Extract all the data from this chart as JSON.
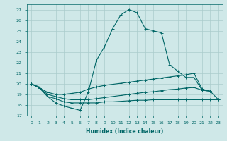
{
  "title": "",
  "xlabel": "Humidex (Indice chaleur)",
  "background_color": "#cfe8e8",
  "grid_color": "#aacccc",
  "line_color": "#006666",
  "xlim": [
    -0.5,
    23.5
  ],
  "ylim": [
    17,
    27.5
  ],
  "yticks": [
    17,
    18,
    19,
    20,
    21,
    22,
    23,
    24,
    25,
    26,
    27
  ],
  "xticks": [
    0,
    1,
    2,
    3,
    4,
    5,
    6,
    7,
    8,
    9,
    10,
    11,
    12,
    13,
    14,
    15,
    16,
    17,
    18,
    19,
    20,
    21,
    22,
    23
  ],
  "series": [
    {
      "x": [
        0,
        1,
        2,
        3,
        4,
        5,
        6,
        7,
        8,
        9,
        10,
        11,
        12,
        13,
        14,
        15,
        16,
        17,
        18,
        19,
        20,
        21,
        22
      ],
      "y": [
        20.0,
        19.7,
        18.8,
        18.2,
        17.9,
        17.7,
        17.5,
        19.2,
        22.2,
        23.5,
        25.2,
        26.5,
        27.0,
        26.7,
        25.2,
        25.0,
        24.8,
        21.8,
        21.2,
        20.6,
        20.6,
        19.4,
        19.3
      ]
    },
    {
      "x": [
        0,
        1,
        2,
        3,
        4,
        5,
        6,
        7,
        8,
        9,
        10,
        11,
        12,
        13,
        14,
        15,
        16,
        17,
        18,
        19,
        20,
        21,
        22,
        23
      ],
      "y": [
        20.0,
        19.6,
        19.2,
        19.0,
        19.0,
        19.1,
        19.2,
        19.5,
        19.7,
        19.85,
        19.95,
        20.05,
        20.15,
        20.25,
        20.35,
        20.45,
        20.55,
        20.65,
        20.75,
        20.85,
        21.0,
        19.5,
        19.3,
        null
      ]
    },
    {
      "x": [
        0,
        1,
        2,
        3,
        4,
        5,
        6,
        7,
        8,
        9,
        10,
        11,
        12,
        13,
        14,
        15,
        16,
        17,
        18,
        19,
        20,
        21,
        22,
        23
      ],
      "y": [
        20.0,
        19.6,
        18.8,
        18.6,
        18.3,
        18.2,
        18.2,
        18.2,
        18.2,
        18.3,
        18.3,
        18.35,
        18.4,
        18.45,
        18.45,
        18.5,
        18.5,
        18.5,
        18.5,
        18.5,
        18.5,
        18.5,
        18.5,
        18.5
      ]
    },
    {
      "x": [
        0,
        1,
        2,
        3,
        4,
        5,
        6,
        7,
        8,
        9,
        10,
        11,
        12,
        13,
        14,
        15,
        16,
        17,
        18,
        19,
        20,
        21,
        22,
        23
      ],
      "y": [
        20.0,
        19.6,
        19.0,
        18.8,
        18.6,
        18.5,
        18.5,
        18.5,
        18.6,
        18.7,
        18.8,
        18.9,
        19.0,
        19.1,
        19.2,
        19.25,
        19.35,
        19.45,
        19.5,
        19.6,
        19.65,
        19.4,
        19.3,
        18.5
      ]
    }
  ]
}
